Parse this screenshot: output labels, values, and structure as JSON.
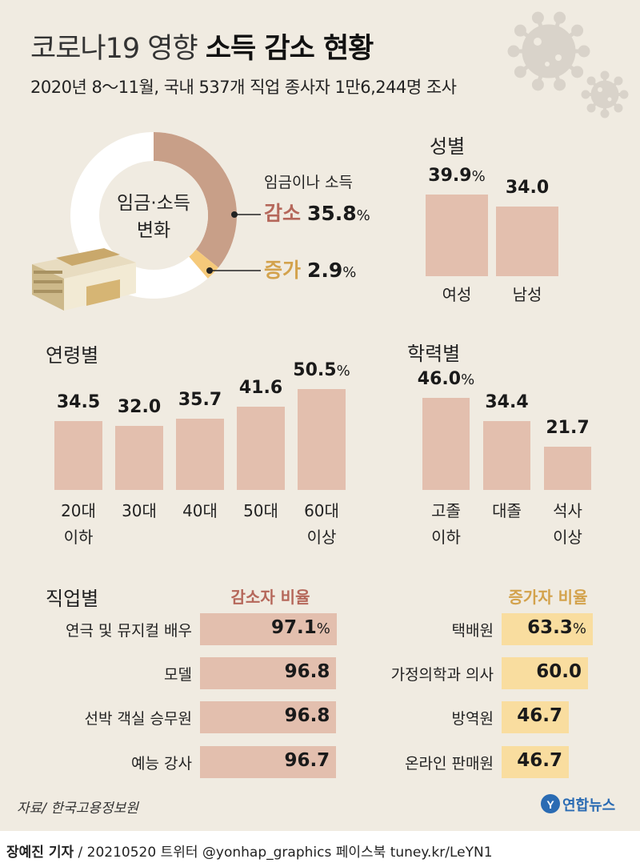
{
  "title_light": "코로나19 영향",
  "title_bold": "소득 감소 현황",
  "subtitle": "2020년 8～11월, 국내 537개 직업 종사자 1만6,244명 조사",
  "chart_data": [
    {
      "type": "pie",
      "title_line1": "임금·소득",
      "title_line2": "변화",
      "slices": [
        {
          "label": "감소",
          "prefix": "임금이나 소득",
          "value": 35.8,
          "display": "35.8",
          "color": "#c89f88"
        },
        {
          "label": "증가",
          "value": 2.9,
          "display": "2.9",
          "color": "#f5c97a"
        }
      ],
      "percent_sign": "%"
    },
    {
      "type": "bar",
      "title": "성별",
      "categories": [
        "여성",
        "남성"
      ],
      "values": [
        39.9,
        34.0
      ],
      "display": [
        "39.9",
        "34.0"
      ],
      "percent_sign": "%",
      "color": "#e3bfae"
    },
    {
      "type": "bar",
      "title": "연령별",
      "categories": [
        [
          "20대",
          "이하"
        ],
        [
          "30대"
        ],
        [
          "40대"
        ],
        [
          "50대"
        ],
        [
          "60대",
          "이상"
        ]
      ],
      "values": [
        34.5,
        32.0,
        35.7,
        41.6,
        50.5
      ],
      "display": [
        "34.5",
        "32.0",
        "35.7",
        "41.6",
        "50.5"
      ],
      "percent_sign": "%",
      "color": "#e3bfae"
    },
    {
      "type": "bar",
      "title": "학력별",
      "categories": [
        [
          "고졸",
          "이하"
        ],
        [
          "대졸"
        ],
        [
          "석사",
          "이상"
        ]
      ],
      "values": [
        46.0,
        34.4,
        21.7
      ],
      "display": [
        "46.0",
        "34.4",
        "21.7"
      ],
      "percent_sign": "%",
      "color": "#e3bfae"
    },
    {
      "type": "bar",
      "orientation": "horizontal",
      "title": "직업별",
      "series_title": "감소자 비율",
      "title_color": "#b5675a",
      "categories": [
        "연극 및 뮤지컬 배우",
        "모델",
        "선박 객실 승무원",
        "예능 강사"
      ],
      "values": [
        97.1,
        96.8,
        96.8,
        96.7
      ],
      "display": [
        "97.1",
        "96.8",
        "96.8",
        "96.7"
      ],
      "percent_sign": "%",
      "color": "#e3bfae"
    },
    {
      "type": "bar",
      "orientation": "horizontal",
      "series_title": "증가자 비율",
      "title_color": "#d3a24c",
      "categories": [
        "택배원",
        "가정의학과 의사",
        "방역원",
        "온라인 판매원"
      ],
      "values": [
        63.3,
        60.0,
        46.7,
        46.7
      ],
      "display": [
        "63.3",
        "60.0",
        "46.7",
        "46.7"
      ],
      "percent_sign": "%",
      "color": "#f9dd9f"
    }
  ],
  "source": "자료/ 한국고용정보원",
  "logo_text": "연합뉴스",
  "footer_reporter": "장예진 기자",
  "footer_rest": " / 20210520 트위터 @yonhap_graphics  페이스북 tuney.kr/LeYN1",
  "icons": [
    "virus-icon",
    "money-stack-icon",
    "yonhap-logo-icon"
  ]
}
